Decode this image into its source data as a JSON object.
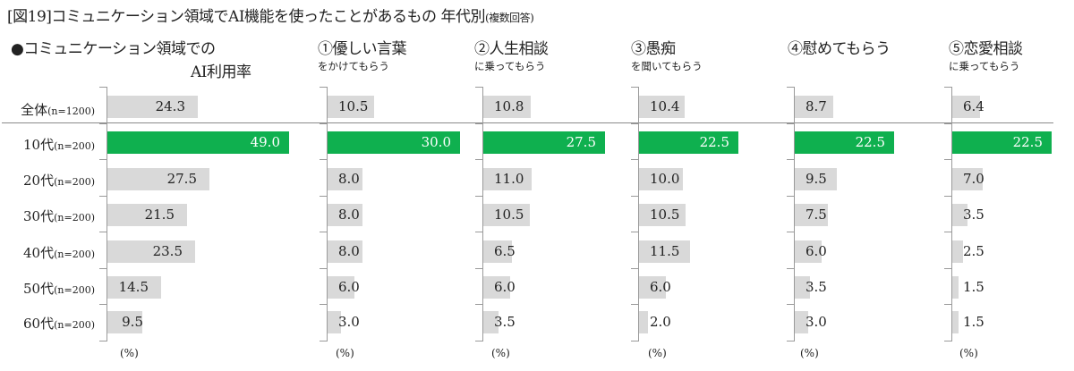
{
  "title": {
    "main": "[図19]コミュニケーション領域でAI機能を使ったことがあるもの 年代別",
    "note": "(複数回答)"
  },
  "row_labels": [
    {
      "label": "全体",
      "n": "(n=1200)"
    },
    {
      "label": "10代",
      "n": "(n=200)"
    },
    {
      "label": "20代",
      "n": "(n=200)"
    },
    {
      "label": "30代",
      "n": "(n=200)"
    },
    {
      "label": "40代",
      "n": "(n=200)"
    },
    {
      "label": "50代",
      "n": "(n=200)"
    },
    {
      "label": "60代",
      "n": "(n=200)"
    }
  ],
  "panels": [
    {
      "title": "●コミュニケーション領域での",
      "title2": "AI利用率",
      "subtitle": "",
      "unit": "(%)"
    },
    {
      "title": "①優しい言葉",
      "subtitle": "をかけてもらう",
      "unit": "(%)"
    },
    {
      "title": "②人生相談",
      "subtitle": "に乗ってもらう",
      "unit": "(%)"
    },
    {
      "title": "③愚痴",
      "subtitle": "を聞いてもらう",
      "unit": "(%)"
    },
    {
      "title": "④慰めてもらう",
      "subtitle": "",
      "unit": "(%)"
    },
    {
      "title": "⑤恋愛相談",
      "subtitle": "に乗ってもらう",
      "unit": "(%)"
    }
  ],
  "colors": {
    "highlight": "#0fb04f",
    "default_bar": "#d9d9d9",
    "axis": "#9a9a9a"
  },
  "chart_data": {
    "type": "bar",
    "orientation": "horizontal",
    "title": "[図19]コミュニケーション領域でAI機能を使ったことがあるもの 年代別(複数回答)",
    "categories": [
      "全体(n=1200)",
      "10代(n=200)",
      "20代(n=200)",
      "30代(n=200)",
      "40代(n=200)",
      "50代(n=200)",
      "60代(n=200)"
    ],
    "unit": "%",
    "highlight_category": "10代(n=200)",
    "series": [
      {
        "name": "コミュニケーション領域でのAI利用率",
        "values": [
          24.3,
          49.0,
          27.5,
          21.5,
          23.5,
          14.5,
          9.5
        ]
      },
      {
        "name": "①優しい言葉をかけてもらう",
        "values": [
          10.5,
          30.0,
          8.0,
          8.0,
          8.0,
          6.0,
          3.0
        ]
      },
      {
        "name": "②人生相談に乗ってもらう",
        "values": [
          10.8,
          27.5,
          11.0,
          10.5,
          6.5,
          6.0,
          3.5
        ]
      },
      {
        "name": "③愚痴を聞いてもらう",
        "values": [
          10.4,
          22.5,
          10.0,
          10.5,
          11.5,
          6.0,
          2.0
        ]
      },
      {
        "name": "④慰めてもらう",
        "values": [
          8.7,
          22.5,
          9.5,
          7.5,
          6.0,
          3.5,
          3.0
        ]
      },
      {
        "name": "⑤恋愛相談に乗ってもらう",
        "values": [
          6.4,
          22.5,
          7.0,
          3.5,
          2.5,
          1.5,
          1.5
        ]
      }
    ],
    "value_labels": {
      "0": [
        "24.3",
        "49.0",
        "27.5",
        "21.5",
        "23.5",
        "14.5",
        "9.5"
      ],
      "1": [
        "10.5",
        "30.0",
        "8.0",
        "8.0",
        "8.0",
        "6.0",
        "3.0"
      ],
      "2": [
        "10.8",
        "27.5",
        "11.0",
        "10.5",
        "6.5",
        "6.0",
        "3.5"
      ],
      "3": [
        "10.4",
        "22.5",
        "10.0",
        "10.5",
        "11.5",
        "6.0",
        "2.0"
      ],
      "4": [
        "8.7",
        "22.5",
        "9.5",
        "7.5",
        "6.0",
        "3.5",
        "3.0"
      ],
      "5": [
        "6.4",
        "22.5",
        "7.0",
        "3.5",
        "2.5",
        "1.5",
        "1.5"
      ]
    },
    "grid": false,
    "legend": "none"
  }
}
